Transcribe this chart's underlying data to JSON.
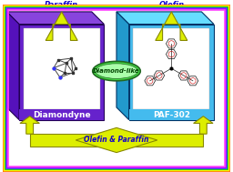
{
  "bg_color": "#ffffff",
  "left_box_face": "#6622cc",
  "left_box_top": "#8844dd",
  "left_box_left": "#5511bb",
  "right_box_face": "#44bbee",
  "right_box_top": "#66ddff",
  "right_box_left": "#2299cc",
  "arrow_color": "#ddee00",
  "arrow_edge": "#888800",
  "ellipse_fill": "#44dd44",
  "ellipse_light": "#aaffaa",
  "ellipse_edge": "#226622",
  "ellipse_text": "Diamond-like",
  "left_label": "Diamondyne",
  "right_label": "PAF-302",
  "top_left_text": "Paraffin",
  "top_right_text": "Olefin",
  "bottom_text": "Olefin & Paraffin",
  "label_color": "#ffffff",
  "arrow_text_color": "#1100cc",
  "ellipse_text_color": "#004400",
  "border_colors": [
    "#ff4444",
    "#ff9900",
    "#ffff00",
    "#00cc00",
    "#4444ff",
    "#aa00ff",
    "#ff44ff"
  ]
}
